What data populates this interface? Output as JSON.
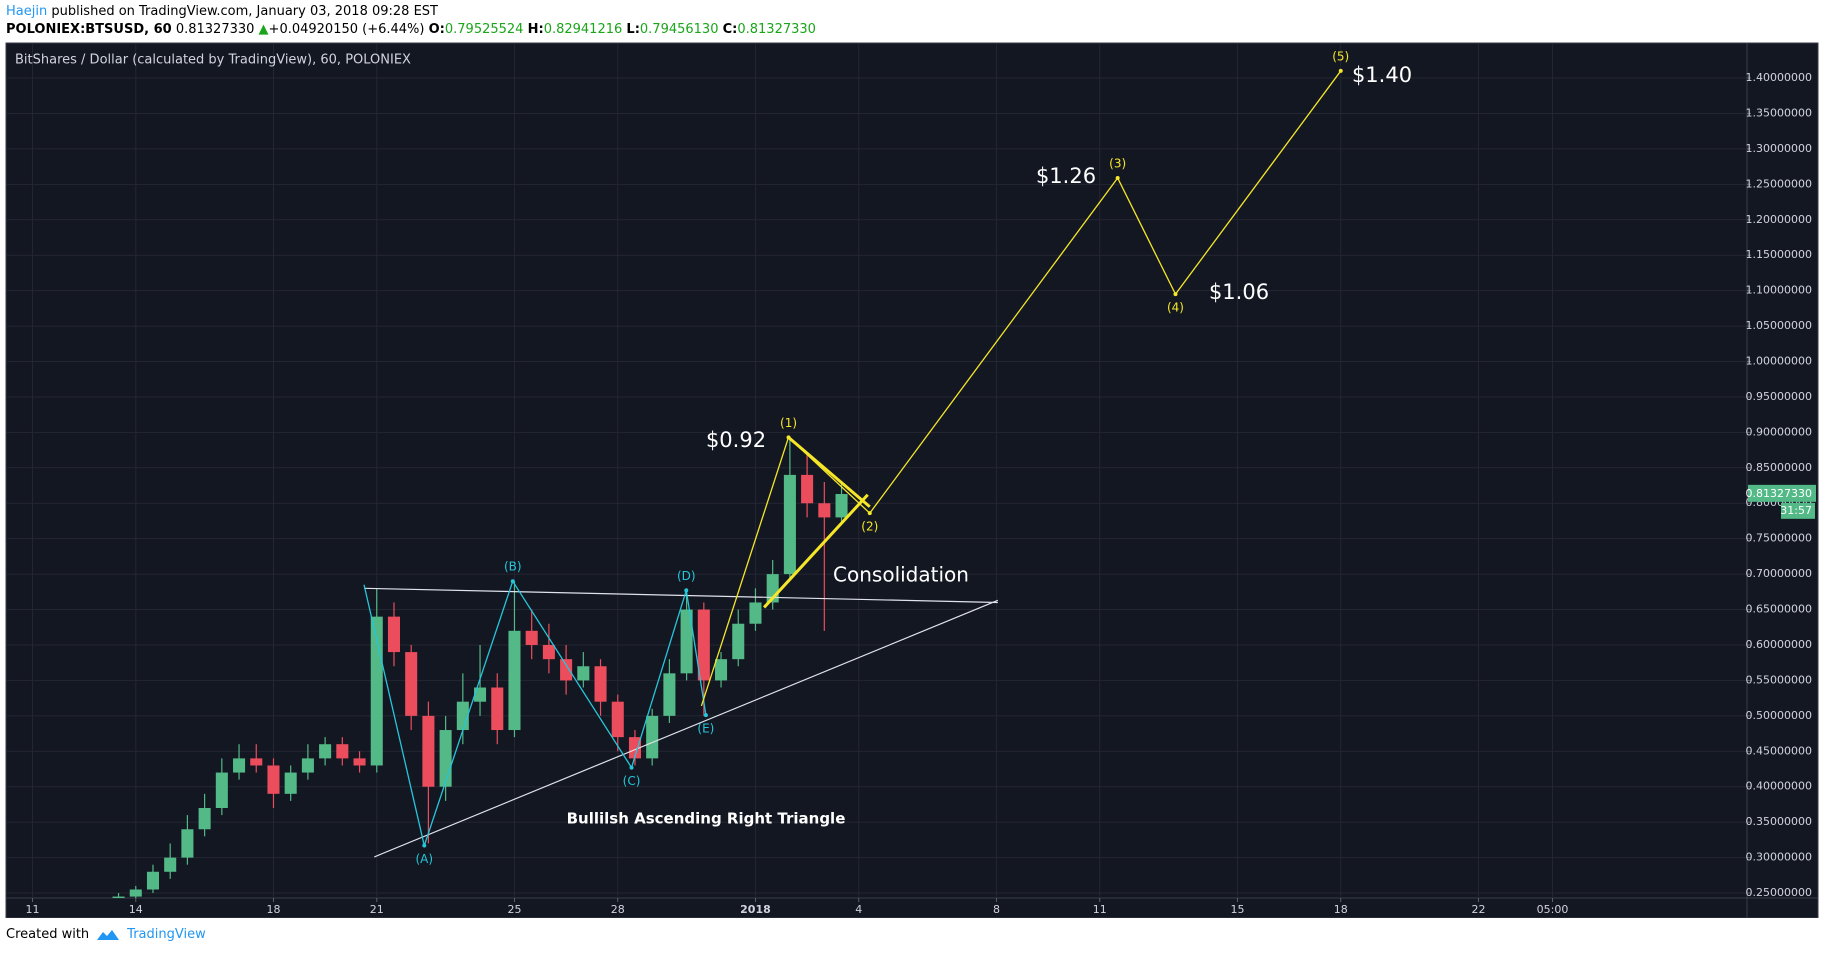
{
  "header": {
    "author": "Haejin",
    "published": "published on TradingView.com, January 03, 2018 09:28 EST",
    "symbol": "POLONIEX:BTSUSD, 60",
    "last": "0.81327330",
    "change_arrow": "▲",
    "change": "+0.04920150 (+6.44%)",
    "open_label": "O:",
    "open": "0.79525524",
    "high_label": "H:",
    "high": "0.82941216",
    "low_label": "L:",
    "low": "0.79456130",
    "close_label": "C:",
    "close": "0.81327330"
  },
  "chart_data": {
    "type": "candlestick",
    "title": "BitShares / Dollar (calculated by TradingView), 60, POLONIEX",
    "up_color": "#53b987",
    "down_color": "#eb4d5c",
    "grid": true,
    "x": [
      2.5,
      3,
      3.5,
      4,
      4.5,
      5,
      5.5,
      6,
      6.5,
      7,
      7.5,
      8,
      8.5,
      9,
      9.5,
      10,
      10.5,
      11,
      11.5,
      12,
      12.5,
      13,
      13.5,
      14,
      14.5,
      15,
      15.5,
      16,
      16.5,
      17,
      17.5,
      18,
      18.5,
      19,
      19.5,
      20,
      20.5,
      21,
      21.5,
      22,
      22.5,
      23,
      23.5
    ],
    "open": [
      0.24,
      0.245,
      0.255,
      0.28,
      0.3,
      0.34,
      0.37,
      0.42,
      0.44,
      0.43,
      0.39,
      0.42,
      0.44,
      0.46,
      0.44,
      0.43,
      0.64,
      0.59,
      0.5,
      0.4,
      0.48,
      0.52,
      0.54,
      0.48,
      0.62,
      0.6,
      0.58,
      0.55,
      0.57,
      0.52,
      0.47,
      0.44,
      0.5,
      0.56,
      0.65,
      0.55,
      0.58,
      0.63,
      0.66,
      0.7,
      0.84,
      0.8,
      0.78
    ],
    "high": [
      0.25,
      0.26,
      0.29,
      0.32,
      0.36,
      0.39,
      0.44,
      0.46,
      0.46,
      0.44,
      0.43,
      0.46,
      0.47,
      0.47,
      0.45,
      0.68,
      0.66,
      0.6,
      0.52,
      0.5,
      0.56,
      0.6,
      0.56,
      0.69,
      0.65,
      0.63,
      0.6,
      0.59,
      0.58,
      0.53,
      0.48,
      0.51,
      0.58,
      0.68,
      0.66,
      0.59,
      0.65,
      0.68,
      0.72,
      0.89,
      0.87,
      0.83,
      0.83
    ],
    "low": [
      0.235,
      0.24,
      0.25,
      0.27,
      0.29,
      0.33,
      0.36,
      0.41,
      0.42,
      0.37,
      0.38,
      0.41,
      0.43,
      0.43,
      0.42,
      0.42,
      0.57,
      0.48,
      0.32,
      0.38,
      0.46,
      0.5,
      0.46,
      0.47,
      0.58,
      0.56,
      0.53,
      0.54,
      0.5,
      0.45,
      0.43,
      0.43,
      0.49,
      0.55,
      0.5,
      0.54,
      0.57,
      0.62,
      0.65,
      0.69,
      0.78,
      0.62,
      0.77
    ],
    "close": [
      0.245,
      0.255,
      0.28,
      0.3,
      0.34,
      0.37,
      0.42,
      0.44,
      0.43,
      0.39,
      0.42,
      0.44,
      0.46,
      0.44,
      0.43,
      0.64,
      0.59,
      0.5,
      0.4,
      0.48,
      0.52,
      0.54,
      0.48,
      0.62,
      0.6,
      0.58,
      0.55,
      0.57,
      0.52,
      0.47,
      0.44,
      0.5,
      0.56,
      0.65,
      0.55,
      0.58,
      0.63,
      0.66,
      0.7,
      0.84,
      0.8,
      0.78,
      0.813
    ],
    "xlim": [
      -0.74,
      49.8
    ],
    "ylim": [
      0.243,
      1.448
    ],
    "xticks": [
      {
        "value": 0,
        "label": "11"
      },
      {
        "value": 3,
        "label": "14"
      },
      {
        "value": 7,
        "label": "18"
      },
      {
        "value": 10,
        "label": "21"
      },
      {
        "value": 14,
        "label": "25"
      },
      {
        "value": 17,
        "label": "28"
      },
      {
        "value": 21,
        "label": "2018"
      },
      {
        "value": 24,
        "label": "4"
      },
      {
        "value": 28,
        "label": "8"
      },
      {
        "value": 31,
        "label": "11"
      },
      {
        "value": 35,
        "label": "15"
      },
      {
        "value": 38,
        "label": "18"
      },
      {
        "value": 42,
        "label": "22"
      },
      {
        "value": 44.15,
        "label": "05:00"
      }
    ],
    "yticks": [
      {
        "value": 0.25,
        "label": "0.25000000"
      },
      {
        "value": 0.3,
        "label": "0.30000000"
      },
      {
        "value": 0.35,
        "label": "0.35000000"
      },
      {
        "value": 0.4,
        "label": "0.40000000"
      },
      {
        "value": 0.45,
        "label": "0.45000000"
      },
      {
        "value": 0.5,
        "label": "0.50000000"
      },
      {
        "value": 0.55,
        "label": "0.55000000"
      },
      {
        "value": 0.6,
        "label": "0.60000000"
      },
      {
        "value": 0.65,
        "label": "0.65000000"
      },
      {
        "value": 0.7,
        "label": "0.70000000"
      },
      {
        "value": 0.75,
        "label": "0.75000000"
      },
      {
        "value": 0.8,
        "label": "0.80000000"
      },
      {
        "value": 0.85,
        "label": "0.85000000"
      },
      {
        "value": 0.9,
        "label": "0.90000000"
      },
      {
        "value": 0.95,
        "label": "0.95000000"
      },
      {
        "value": 1.0,
        "label": "1.00000000"
      },
      {
        "value": 1.05,
        "label": "1.05000000"
      },
      {
        "value": 1.1,
        "label": "1.10000000"
      },
      {
        "value": 1.15,
        "label": "1.15000000"
      },
      {
        "value": 1.2,
        "label": "1.20000000"
      },
      {
        "value": 1.25,
        "label": "1.25000000"
      },
      {
        "value": 1.3,
        "label": "1.30000000"
      },
      {
        "value": 1.35,
        "label": "1.35000000"
      },
      {
        "value": 1.4,
        "label": "1.40000000"
      }
    ],
    "last_price": {
      "value": 0.8132733,
      "label": "0.81327330",
      "timer": "31:57",
      "color": "#53b987"
    },
    "lines": [
      {
        "name": "triangle-top",
        "color": "#e0e3eb",
        "width": 1.2,
        "x": [
          9.63,
          28.04
        ],
        "y": [
          0.68,
          0.66
        ]
      },
      {
        "name": "triangle-bottom",
        "color": "#e0e3eb",
        "width": 1.2,
        "x": [
          9.93,
          28.04
        ],
        "y": [
          0.301,
          0.663
        ]
      },
      {
        "name": "abcde-wave",
        "color": "#26c6da",
        "width": 1.3,
        "x": [
          9.63,
          11.38,
          13.95,
          17.4,
          18.99,
          19.56
        ],
        "y": [
          0.685,
          0.317,
          0.69,
          0.427,
          0.677,
          0.501
        ],
        "labels": [
          null,
          "(A)",
          "(B)",
          "(C)",
          "(D)",
          "(E)"
        ]
      },
      {
        "name": "impulse-wave",
        "color": "#f5e628",
        "width": 1.3,
        "x": [
          19.43,
          21.96,
          24.32,
          31.52,
          33.2,
          38.0
        ],
        "y": [
          0.514,
          0.893,
          0.786,
          1.259,
          1.095,
          1.41
        ],
        "labels": [
          null,
          "(1)",
          "(2)",
          "(3)",
          "(4)",
          "(5)"
        ]
      },
      {
        "name": "pennant-top",
        "color": "#f5e628",
        "width": 3,
        "x": [
          21.96,
          24.32
        ],
        "y": [
          0.893,
          0.795
        ]
      },
      {
        "name": "pennant-bottom",
        "color": "#f5e628",
        "width": 3,
        "x": [
          21.25,
          24.26
        ],
        "y": [
          0.653,
          0.812
        ]
      }
    ],
    "annotations": [
      "$0.92",
      "$1.26",
      "$1.06",
      "$1.40",
      "Consolidation",
      "Bullilsh Ascending Right Triangle"
    ]
  },
  "footer": {
    "created": "Created with",
    "brand": "TradingView"
  }
}
